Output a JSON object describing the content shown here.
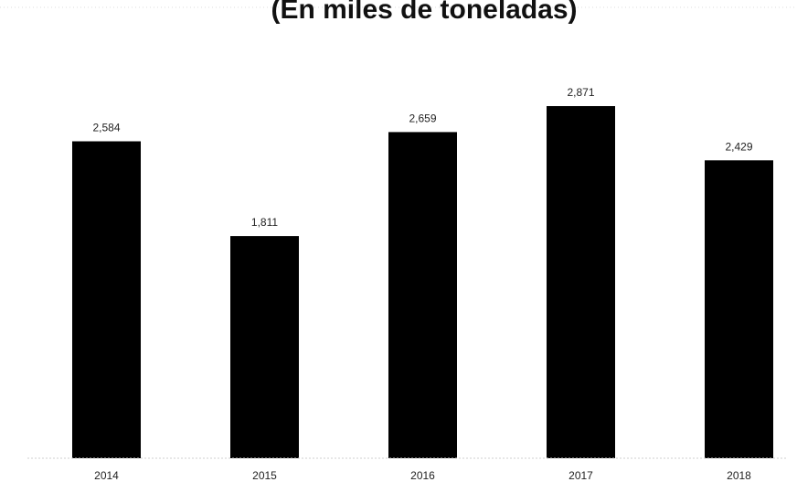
{
  "chart_data": {
    "type": "bar",
    "title": "(En miles de toneladas)",
    "categories": [
      "2014",
      "2015",
      "2016",
      "2017",
      "2018"
    ],
    "values": [
      2584,
      1811,
      2659,
      2871,
      2429
    ],
    "value_labels": [
      "2,584",
      "1,811",
      "2,659",
      "2,871",
      "2,429"
    ],
    "ylim": [
      0,
      3000
    ],
    "grid": false,
    "bar_color": "#000000"
  }
}
